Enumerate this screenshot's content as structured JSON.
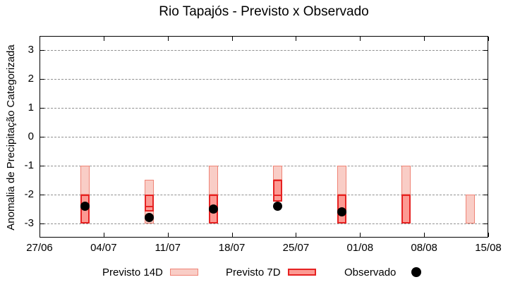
{
  "chart_data": {
    "type": "bar",
    "title": "Rio Tapajós - Previsto x Observado",
    "ylabel": "Anomalia de Precipitação Categorizada",
    "xlabel": "",
    "ylim": [
      -3.5,
      3.5
    ],
    "y_ticks": [
      "3",
      "2",
      "1",
      "0",
      "-1",
      "-2",
      "-3"
    ],
    "x_ticks": [
      "27/06",
      "04/07",
      "11/07",
      "18/07",
      "25/07",
      "01/08",
      "08/08",
      "15/08"
    ],
    "x_range_days": 49,
    "grid": "horizontal dotted",
    "legend_position": "bottom",
    "colors": {
      "previsto_14d_fill": "#f9cdc6",
      "previsto_14d_border": "#ef8476",
      "previsto_7d_fill": "#fc9a93",
      "previsto_7d_border": "#e62222",
      "observado": "#000000",
      "grid": "#909090"
    },
    "series": [
      {
        "name": "Previsto 14D",
        "type": "range_bar",
        "bars": [
          {
            "date": "02/07",
            "from": -2,
            "to": -1
          },
          {
            "date": "09/07",
            "from": -3,
            "to": -1.5
          },
          {
            "date": "16/07",
            "from": -2,
            "to": -1
          },
          {
            "date": "23/07",
            "from": -1.5,
            "to": -1
          },
          {
            "date": "30/07",
            "from": -2,
            "to": -1
          },
          {
            "date": "06/08",
            "from": -2,
            "to": -1
          },
          {
            "date": "13/08",
            "from": -3,
            "to": -2
          }
        ]
      },
      {
        "name": "Previsto 7D",
        "type": "range_bar",
        "bars": [
          {
            "date": "02/07",
            "from": -3,
            "to": -2
          },
          {
            "date": "09/07",
            "from": -2.6,
            "to": -2,
            "divider": -2.4
          },
          {
            "date": "16/07",
            "from": -3,
            "to": -2
          },
          {
            "date": "23/07",
            "from": -2.25,
            "to": -1.5,
            "divider": -2
          },
          {
            "date": "30/07",
            "from": -3,
            "to": -2
          },
          {
            "date": "06/08",
            "from": -3,
            "to": -2
          }
        ]
      },
      {
        "name": "Observado",
        "type": "scatter",
        "points": [
          {
            "date": "02/07",
            "value": -2.4
          },
          {
            "date": "09/07",
            "value": -2.8
          },
          {
            "date": "16/07",
            "value": -2.5
          },
          {
            "date": "23/07",
            "value": -2.4
          },
          {
            "date": "30/07",
            "value": -2.6
          }
        ]
      }
    ]
  }
}
